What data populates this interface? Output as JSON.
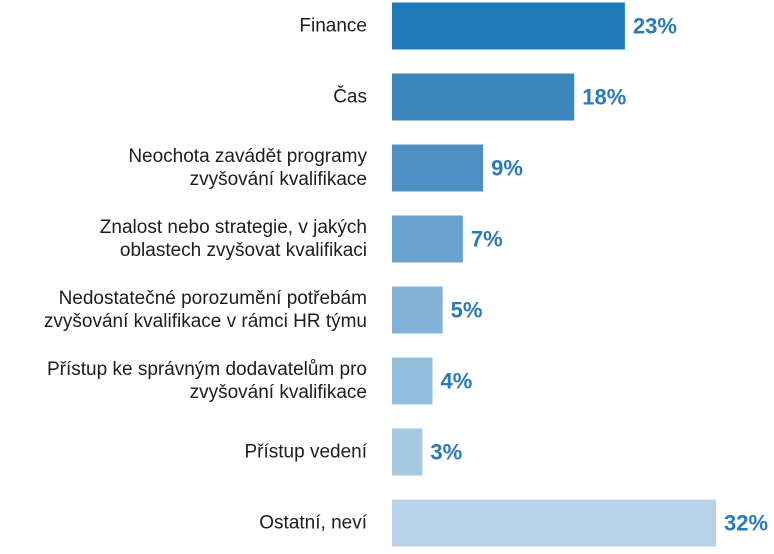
{
  "chart_data": {
    "type": "bar",
    "orientation": "horizontal",
    "categories": [
      [
        "Finance"
      ],
      [
        "Čas"
      ],
      [
        "Neochota zavádět programy",
        "zvyšování kvalifikace"
      ],
      [
        "Znalost nebo strategie, v jakých",
        "oblastech zvyšovat kvalifikaci"
      ],
      [
        "Nedostatečné porozumění potřebám",
        "zvyšování kvalifikace v rámci HR týmu"
      ],
      [
        "Přístup ke správným dodavatelům pro",
        "zvyšování kvalifikace"
      ],
      [
        "Přístup vedení"
      ],
      [
        "Ostatní, neví"
      ]
    ],
    "values": [
      23,
      18,
      9,
      7,
      5,
      4,
      3,
      32
    ],
    "value_labels": [
      "23%",
      "18%",
      "9%",
      "7%",
      "5%",
      "4%",
      "3%",
      "32%"
    ],
    "unit": "%",
    "xlim": [
      0,
      32
    ],
    "grid": false,
    "legend": "none",
    "colors": {
      "bars": [
        "#1f78b8",
        "#3c87be",
        "#4d8fc2",
        "#6aa3cf",
        "#82b2d7",
        "#94bede",
        "#a6c9e3",
        "#b8d3e9"
      ],
      "value_text": "#2a7ab9",
      "category_text": "#1d1d1d"
    }
  }
}
